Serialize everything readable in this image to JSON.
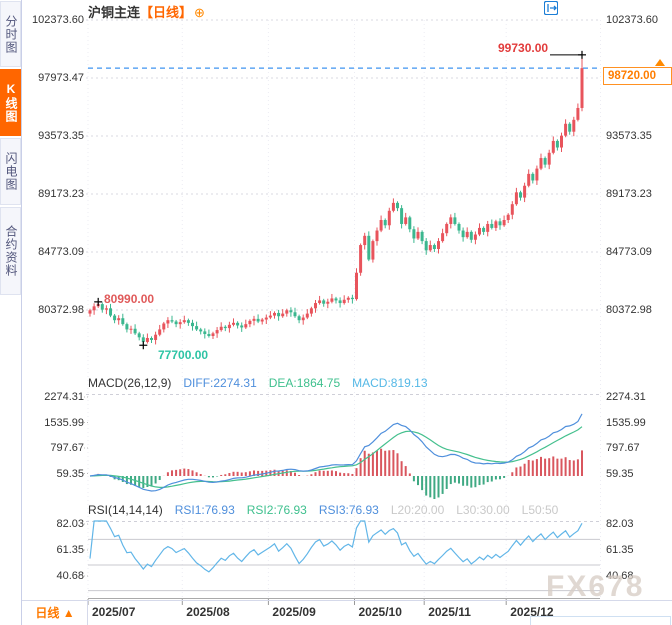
{
  "header": {
    "title": "沪铜主连",
    "period": "【日线】",
    "add_icon": "⊕"
  },
  "toolbar": {
    "icons": [
      {
        "name": "pan-tool-icon"
      },
      {
        "name": "zoom-x-axis-icon"
      },
      {
        "name": "zoom-y-axis-icon"
      },
      {
        "name": "exit-right-icon"
      }
    ]
  },
  "sidebar": {
    "tabs": [
      {
        "label": "分时图",
        "active": false
      },
      {
        "label": "K线图",
        "active": true
      },
      {
        "label": "闪电图",
        "active": false
      },
      {
        "label": "合约资料",
        "active": false
      }
    ]
  },
  "annotations": {
    "period_high": "99730.00",
    "early_high": "80990.00",
    "period_low": "77700.00",
    "last_price": "98720.00"
  },
  "macd_row": {
    "title": "MACD(26,12,9)",
    "diff": "DIFF:2274.31",
    "dea": "DEA:1864.75",
    "macd": "MACD:819.13"
  },
  "rsi_row": {
    "title": "RSI(14,14,14)",
    "rsi1": "RSI1:76.93",
    "rsi2": "RSI2:76.93",
    "rsi3": "RSI3:76.93",
    "l20": "L20:20.00",
    "l30": "L30:30.00",
    "l50": "L50:50"
  },
  "bottom_bar": {
    "period_label": "日线",
    "arrow": "▲"
  },
  "watermark": "FX678",
  "colors": {
    "up": "#e8545c",
    "down": "#3bb78f",
    "accent_orange": "#ff6600",
    "diff_line": "#4f8fdc",
    "dea_line": "#45c08e",
    "rsi_line": "#62b6e8",
    "hist_up": "#d9565e",
    "hist_down": "#3fa983",
    "dashed_price_line": "#3f94f0",
    "grid": "#d9d9e0",
    "toolbar_blue": "#1c7ed6"
  },
  "chart_data": {
    "type": "candlestick",
    "title": "沪铜主连 日线",
    "main": {
      "axis_labels": [
        "102373.60",
        "97973.47",
        "93573.35",
        "89173.23",
        "84773.09",
        "80372.98"
      ],
      "axis_values": [
        102373.6,
        97973.47,
        93573.35,
        89173.23,
        84773.09,
        80372.98
      ],
      "top_value": 102373.6,
      "bottom_value": 80372.98
    },
    "candles": {
      "first_open": 80100,
      "closes": [
        80350,
        80650,
        80820,
        80400,
        80500,
        79950,
        79600,
        79750,
        79300,
        78900,
        78950,
        78600,
        78300,
        77950,
        78250,
        78100,
        78500,
        78900,
        79350,
        79600,
        79500,
        79300,
        79450,
        79600,
        79400,
        79150,
        78900,
        78750,
        78550,
        78400,
        78600,
        78850,
        79100,
        79000,
        79250,
        79400,
        79200,
        79050,
        79300,
        79550,
        79700,
        79500,
        79650,
        79800,
        79950,
        80150,
        79900,
        80100,
        80350,
        80200,
        79900,
        79600,
        79800,
        80100,
        80500,
        80900,
        81100,
        80850,
        81000,
        81250,
        81100,
        80900,
        81150,
        81300,
        81200,
        83200,
        85300,
        86000,
        84200,
        85600,
        86400,
        87200,
        86800,
        87900,
        88500,
        88100,
        86900,
        87400,
        86500,
        85800,
        86300,
        85600,
        84900,
        85300,
        85000,
        85600,
        86200,
        86900,
        87400,
        86900,
        86400,
        85900,
        86300,
        85700,
        86100,
        86600,
        86300,
        86900,
        86600,
        87100,
        86800,
        87200,
        87600,
        88400,
        89300,
        88900,
        89800,
        90700,
        90200,
        91100,
        91900,
        91400,
        92300,
        93200,
        92700,
        93600,
        94500,
        93900,
        94800,
        95700,
        98720
      ],
      "wick_base": 120,
      "wick_step": 110,
      "overrides": {
        "2": {
          "high": 80990
        },
        "13": {
          "low": 77700
        },
        "120": {
          "high": 99730,
          "low": 95450
        }
      }
    },
    "months": [
      {
        "label": "2025/07",
        "i": 0
      },
      {
        "label": "2025/08",
        "i": 23
      },
      {
        "label": "2025/09",
        "i": 44
      },
      {
        "label": "2025/10",
        "i": 65
      },
      {
        "label": "2025/11",
        "i": 82
      },
      {
        "label": "2025/12",
        "i": 102
      }
    ],
    "markers": {
      "high": {
        "index": 120,
        "price": 99730
      },
      "early_high": {
        "index": 2,
        "price": 80990
      },
      "low": {
        "index": 13,
        "price": 77700
      },
      "last_price": 98720
    },
    "macd": {
      "params": [
        26,
        12,
        9
      ],
      "diff": 2274.31,
      "dea": 1864.75,
      "macd": 819.13,
      "axis_labels": [
        "2274.31",
        "1535.99",
        "797.67",
        "59.35"
      ]
    },
    "rsi": {
      "params": [
        14,
        14,
        14
      ],
      "rsi1": 76.93,
      "rsi2": 76.93,
      "rsi3": 76.93,
      "axis_labels": [
        "82.03",
        "61.35",
        "40.68"
      ],
      "axis_top_value": 82.03,
      "gridline_values": [
        70,
        50,
        30
      ]
    },
    "x_tick_labels": [
      "2025/07",
      "2025/08",
      "2025/09",
      "2025/10",
      "2025/11",
      "2025/12"
    ],
    "legend_position": "top-left-of-each-panel",
    "grid": "dotted"
  }
}
